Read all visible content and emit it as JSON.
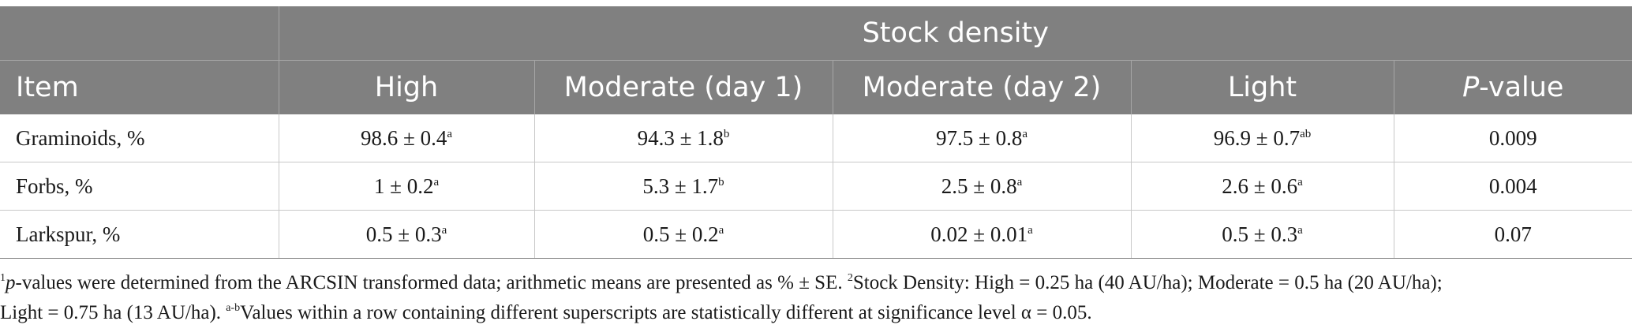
{
  "table": {
    "group_header": "Stock density",
    "headers": {
      "item": "Item",
      "high": "High",
      "moderate1": "Moderate (day 1)",
      "moderate2": "Moderate (day 2)",
      "light": "Light",
      "p_italic": "P",
      "p_rest": "-value"
    },
    "rows": [
      {
        "label": "Graminoids, %",
        "high": "98.6 ± 0.4",
        "high_sup": "a",
        "moderate1": "94.3 ± 1.8",
        "moderate1_sup": "b",
        "moderate2": "97.5 ± 0.8",
        "moderate2_sup": "a",
        "light": "96.9 ± 0.7",
        "light_sup": "ab",
        "p": "0.009"
      },
      {
        "label": "Forbs, %",
        "high": "1 ± 0.2",
        "high_sup": "a",
        "moderate1": "5.3 ± 1.7",
        "moderate1_sup": "b",
        "moderate2": "2.5 ± 0.8",
        "moderate2_sup": "a",
        "light": "2.6 ± 0.6",
        "light_sup": "a",
        "p": "0.004"
      },
      {
        "label": "Larkspur, %",
        "high": "0.5 ± 0.3",
        "high_sup": "a",
        "moderate1": "0.5 ± 0.2",
        "moderate1_sup": "a",
        "moderate2": "0.02 ± 0.01",
        "moderate2_sup": "a",
        "light": "0.5 ± 0.3",
        "light_sup": "a",
        "p": "0.07"
      }
    ]
  },
  "footnote": {
    "mark1": "1",
    "p_italic": "p",
    "text1": "-values were determined from the ARCSIN transformed data; arithmetic means are presented as % ± SE. ",
    "mark2": "2",
    "text2": "Stock Density: High = 0.25 ha (40 AU/ha); Moderate = 0.5 ha (20 AU/ha);",
    "text3": "Light = 0.75 ha (13 AU/ha). ",
    "mark3": "a-b",
    "text4": "Values within a row containing different superscripts are statistically different at significance level α = 0.05."
  }
}
